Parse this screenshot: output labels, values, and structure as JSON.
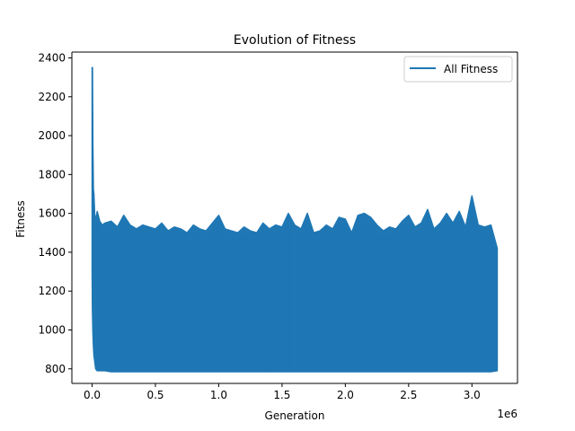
{
  "chart_data": {
    "type": "line",
    "title": "Evolution of Fitness",
    "xlabel": "Generation",
    "ylabel": "Fitness",
    "x_offset_label": "1e6",
    "x_scale": 1000000,
    "xlim": [
      -160000,
      3360000
    ],
    "ylim": [
      725,
      2430
    ],
    "x_ticks": [
      0,
      500000,
      1000000,
      1500000,
      2000000,
      2500000,
      3000000
    ],
    "x_tick_labels": [
      "0.0",
      "0.5",
      "1.0",
      "1.5",
      "2.0",
      "2.5",
      "3.0"
    ],
    "y_ticks": [
      800,
      1000,
      1200,
      1400,
      1600,
      1800,
      2000,
      2200,
      2400
    ],
    "y_tick_labels": [
      "800",
      "1000",
      "1200",
      "1400",
      "1600",
      "1800",
      "2000",
      "2200",
      "2400"
    ],
    "grid": false,
    "legend_position": "top-right",
    "series": [
      {
        "name": "All Fitness",
        "color": "#1f77b4",
        "x": [
          0,
          2500,
          6000,
          10000,
          14000,
          20000,
          28000,
          40000,
          60000,
          80000,
          100000,
          150000,
          200000,
          250000,
          300000,
          350000,
          400000,
          450000,
          500000,
          550000,
          600000,
          650000,
          700000,
          750000,
          800000,
          850000,
          900000,
          950000,
          1000000,
          1050000,
          1100000,
          1150000,
          1200000,
          1250000,
          1300000,
          1350000,
          1400000,
          1450000,
          1500000,
          1550000,
          1600000,
          1650000,
          1700000,
          1750000,
          1800000,
          1850000,
          1900000,
          1950000,
          2000000,
          2050000,
          2100000,
          2150000,
          2200000,
          2250000,
          2300000,
          2350000,
          2400000,
          2450000,
          2500000,
          2550000,
          2600000,
          2650000,
          2700000,
          2750000,
          2800000,
          2850000,
          2900000,
          2950000,
          3000000,
          3050000,
          3100000,
          3150000,
          3200000
        ],
        "max": [
          2350,
          2350,
          1950,
          1725,
          1700,
          1600,
          1560,
          1610,
          1560,
          1540,
          1550,
          1560,
          1530,
          1590,
          1540,
          1520,
          1540,
          1530,
          1520,
          1550,
          1510,
          1530,
          1520,
          1500,
          1540,
          1520,
          1510,
          1550,
          1590,
          1520,
          1510,
          1500,
          1530,
          1510,
          1500,
          1550,
          1520,
          1540,
          1530,
          1600,
          1540,
          1520,
          1600,
          1500,
          1510,
          1540,
          1520,
          1580,
          1570,
          1500,
          1590,
          1600,
          1580,
          1540,
          1510,
          1530,
          1520,
          1560,
          1590,
          1530,
          1550,
          1620,
          1520,
          1550,
          1600,
          1550,
          1610,
          1530,
          1690,
          1540,
          1530,
          1540,
          1420
        ],
        "min": [
          1300,
          1100,
          990,
          920,
          870,
          840,
          800,
          790,
          790,
          790,
          790,
          785,
          785,
          785,
          785,
          785,
          785,
          785,
          785,
          785,
          785,
          785,
          785,
          785,
          785,
          785,
          785,
          785,
          785,
          785,
          785,
          785,
          785,
          785,
          785,
          785,
          785,
          785,
          785,
          785,
          785,
          785,
          785,
          785,
          785,
          785,
          785,
          785,
          785,
          785,
          785,
          785,
          785,
          785,
          785,
          785,
          785,
          785,
          785,
          785,
          785,
          785,
          785,
          785,
          785,
          785,
          785,
          785,
          785,
          785,
          785,
          785,
          790
        ]
      }
    ]
  }
}
